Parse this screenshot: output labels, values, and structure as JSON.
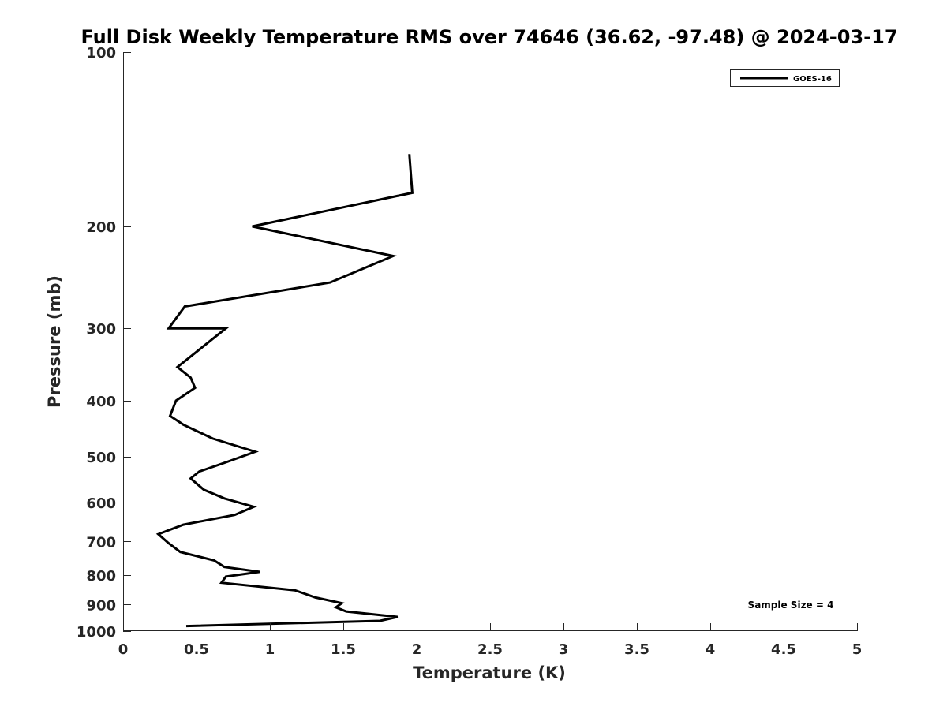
{
  "chart_data": {
    "type": "line",
    "title": "Full Disk Weekly Temperature RMS over 74646 (36.62, -97.48) @ 2024-03-17",
    "xlabel": "Temperature (K)",
    "ylabel": "Pressure (mb)",
    "xlim": [
      0,
      5
    ],
    "ylim": [
      100,
      1000
    ],
    "y_scale": "log",
    "y_reversed": true,
    "x_ticks": [
      0,
      0.5,
      1,
      1.5,
      2,
      2.5,
      3,
      3.5,
      4,
      4.5,
      5
    ],
    "x_tick_labels": [
      "0",
      "0.5",
      "1",
      "1.5",
      "2",
      "2.5",
      "3",
      "3.5",
      "4",
      "4.5",
      "5"
    ],
    "y_ticks": [
      100,
      200,
      300,
      400,
      500,
      600,
      700,
      800,
      900,
      1000
    ],
    "y_tick_labels": [
      "100",
      "200",
      "300",
      "400",
      "500",
      "600",
      "700",
      "800",
      "900",
      "1000"
    ],
    "grid": false,
    "legend_position": "top-right",
    "annotations": [
      "Sample Size = 4"
    ],
    "series": [
      {
        "name": "GOES-16",
        "color": "#000000",
        "points": [
          {
            "x": 1.95,
            "y": 150
          },
          {
            "x": 1.97,
            "y": 175
          },
          {
            "x": 0.88,
            "y": 200
          },
          {
            "x": 1.84,
            "y": 225
          },
          {
            "x": 1.41,
            "y": 250
          },
          {
            "x": 0.42,
            "y": 275
          },
          {
            "x": 0.31,
            "y": 300
          },
          {
            "x": 0.7,
            "y": 300
          },
          {
            "x": 0.37,
            "y": 350
          },
          {
            "x": 0.46,
            "y": 365
          },
          {
            "x": 0.49,
            "y": 380
          },
          {
            "x": 0.36,
            "y": 400
          },
          {
            "x": 0.32,
            "y": 425
          },
          {
            "x": 0.41,
            "y": 440
          },
          {
            "x": 0.61,
            "y": 465
          },
          {
            "x": 0.9,
            "y": 490
          },
          {
            "x": 0.71,
            "y": 510
          },
          {
            "x": 0.52,
            "y": 530
          },
          {
            "x": 0.46,
            "y": 545
          },
          {
            "x": 0.55,
            "y": 570
          },
          {
            "x": 0.69,
            "y": 590
          },
          {
            "x": 0.89,
            "y": 610
          },
          {
            "x": 0.76,
            "y": 630
          },
          {
            "x": 0.41,
            "y": 655
          },
          {
            "x": 0.24,
            "y": 680
          },
          {
            "x": 0.31,
            "y": 705
          },
          {
            "x": 0.39,
            "y": 730
          },
          {
            "x": 0.62,
            "y": 755
          },
          {
            "x": 0.69,
            "y": 775
          },
          {
            "x": 0.93,
            "y": 790
          },
          {
            "x": 0.7,
            "y": 805
          },
          {
            "x": 0.67,
            "y": 825
          },
          {
            "x": 1.17,
            "y": 850
          },
          {
            "x": 1.31,
            "y": 875
          },
          {
            "x": 1.49,
            "y": 895
          },
          {
            "x": 1.45,
            "y": 910
          },
          {
            "x": 1.52,
            "y": 925
          },
          {
            "x": 1.87,
            "y": 945
          },
          {
            "x": 1.75,
            "y": 960
          },
          {
            "x": 0.43,
            "y": 980
          }
        ]
      }
    ]
  }
}
